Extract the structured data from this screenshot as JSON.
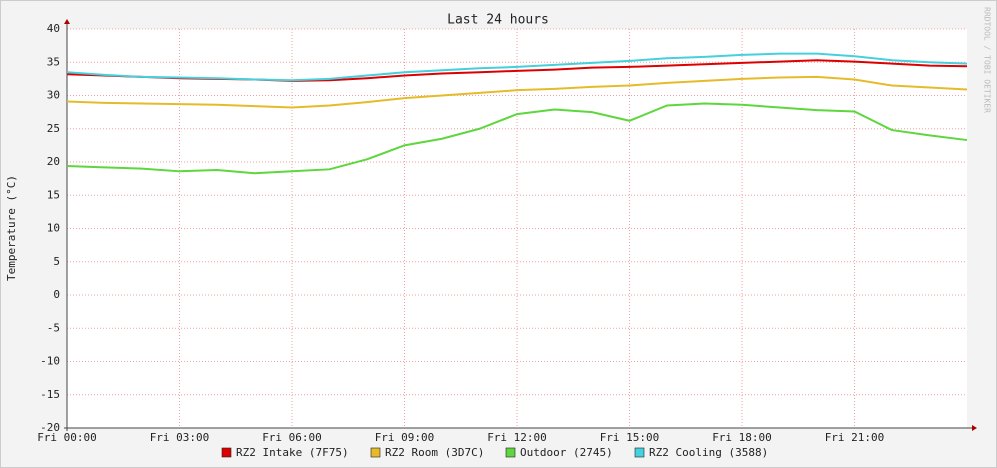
{
  "chart_data": {
    "type": "line",
    "title": "Last 24 hours",
    "y_label": "Temperature (°C)",
    "side_text": "RRDTOOL / TOBI OETIKER",
    "x": [
      0,
      1,
      2,
      3,
      4,
      5,
      6,
      7,
      8,
      9,
      10,
      11,
      12,
      13,
      14,
      15,
      16,
      17,
      18,
      19,
      20,
      21,
      22,
      23,
      24
    ],
    "xlim": [
      0,
      24
    ],
    "xticks": [
      {
        "value": 0,
        "label": "Fri 00:00"
      },
      {
        "value": 3,
        "label": "Fri 03:00"
      },
      {
        "value": 6,
        "label": "Fri 06:00"
      },
      {
        "value": 9,
        "label": "Fri 09:00"
      },
      {
        "value": 12,
        "label": "Fri 12:00"
      },
      {
        "value": 15,
        "label": "Fri 15:00"
      },
      {
        "value": 18,
        "label": "Fri 18:00"
      },
      {
        "value": 21,
        "label": "Fri 21:00"
      }
    ],
    "ylim": [
      -20,
      40
    ],
    "yticks": [
      -20,
      -15,
      -10,
      -5,
      0,
      5,
      10,
      15,
      20,
      25,
      30,
      35,
      40
    ],
    "grid": true,
    "series": [
      {
        "name": "RZ2 Intake (7F75)",
        "color": "#dd0000",
        "values": [
          33.2,
          33.0,
          32.8,
          32.6,
          32.5,
          32.4,
          32.2,
          32.3,
          32.6,
          33.0,
          33.3,
          33.5,
          33.7,
          33.9,
          34.2,
          34.3,
          34.5,
          34.7,
          34.9,
          35.1,
          35.3,
          35.1,
          34.8,
          34.5,
          34.4
        ]
      },
      {
        "name": "RZ2 Room (3D7C)",
        "color": "#e6bb2a",
        "values": [
          29.1,
          28.9,
          28.8,
          28.7,
          28.6,
          28.4,
          28.2,
          28.5,
          29.0,
          29.6,
          30.0,
          30.4,
          30.8,
          31.0,
          31.3,
          31.5,
          31.9,
          32.2,
          32.5,
          32.7,
          32.8,
          32.4,
          31.5,
          31.2,
          30.9
        ]
      },
      {
        "name": "Outdoor (2745)",
        "color": "#5ed63e",
        "values": [
          19.4,
          19.2,
          19.0,
          18.6,
          18.8,
          18.3,
          18.6,
          18.9,
          20.4,
          22.5,
          23.5,
          25.0,
          27.2,
          27.9,
          27.5,
          26.2,
          28.5,
          28.8,
          28.6,
          28.2,
          27.8,
          27.6,
          24.8,
          24.0,
          23.3
        ]
      },
      {
        "name": "RZ2 Cooling (3588)",
        "color": "#44d0dd",
        "values": [
          33.5,
          33.1,
          32.8,
          32.7,
          32.6,
          32.4,
          32.3,
          32.5,
          33.0,
          33.5,
          33.8,
          34.1,
          34.3,
          34.6,
          34.9,
          35.2,
          35.6,
          35.8,
          36.1,
          36.3,
          36.3,
          35.9,
          35.3,
          35.0,
          34.8
        ]
      }
    ]
  }
}
